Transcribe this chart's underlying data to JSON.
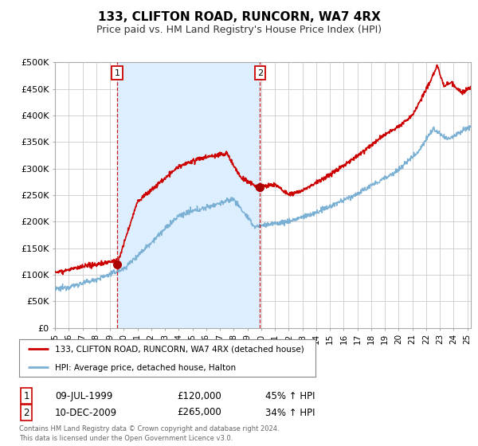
{
  "title": "133, CLIFTON ROAD, RUNCORN, WA7 4RX",
  "subtitle": "Price paid vs. HM Land Registry's House Price Index (HPI)",
  "title_fontsize": 11,
  "subtitle_fontsize": 9,
  "background_color": "#ffffff",
  "grid_color": "#cccccc",
  "shade_color": "#ddeeff",
  "ylim": [
    0,
    500000
  ],
  "yticks": [
    0,
    50000,
    100000,
    150000,
    200000,
    250000,
    300000,
    350000,
    400000,
    450000,
    500000
  ],
  "ytick_labels": [
    "£0",
    "£50K",
    "£100K",
    "£150K",
    "£200K",
    "£250K",
    "£300K",
    "£350K",
    "£400K",
    "£450K",
    "£500K"
  ],
  "sale1_x": 1999.53,
  "sale1_y": 120000,
  "sale2_x": 2009.92,
  "sale2_y": 265000,
  "legend_line1": "133, CLIFTON ROAD, RUNCORN, WA7 4RX (detached house)",
  "legend_line2": "HPI: Average price, detached house, Halton",
  "footer": "Contains HM Land Registry data © Crown copyright and database right 2024.\nThis data is licensed under the Open Government Licence v3.0.",
  "property_color": "#cc0000",
  "hpi_color": "#7ab0d4",
  "vline_color": "#cc0000",
  "marker_color": "#aa0000",
  "xlim_start": 1995.0,
  "xlim_end": 2025.25
}
